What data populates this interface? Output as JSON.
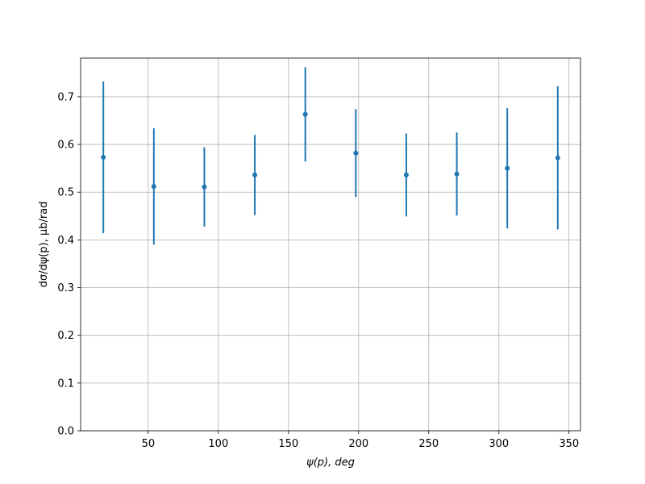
{
  "chart_data": {
    "type": "errorbar",
    "xlabel": "ψ(p), deg",
    "ylabel": "dσ/dψ(p), μb/rad",
    "x": [
      18,
      54,
      90,
      126,
      162,
      198,
      234,
      270,
      306,
      342
    ],
    "series": [
      {
        "color": "#1f77b4",
        "values": [
          0.573,
          0.512,
          0.511,
          0.536,
          0.663,
          0.582,
          0.536,
          0.538,
          0.55,
          0.572
        ],
        "errors": [
          0.159,
          0.122,
          0.083,
          0.084,
          0.099,
          0.092,
          0.087,
          0.087,
          0.126,
          0.15
        ]
      }
    ],
    "xlim": [
      1.8,
      358.2
    ],
    "ylim": [
      0,
      0.781
    ],
    "xticks": [
      50,
      100,
      150,
      200,
      250,
      300,
      350
    ],
    "yticks": [
      {
        "value": 0,
        "label": "0.0"
      },
      0.1,
      0.2,
      0.3,
      0.4,
      0.5,
      0.6,
      0.7
    ],
    "grid": true
  }
}
